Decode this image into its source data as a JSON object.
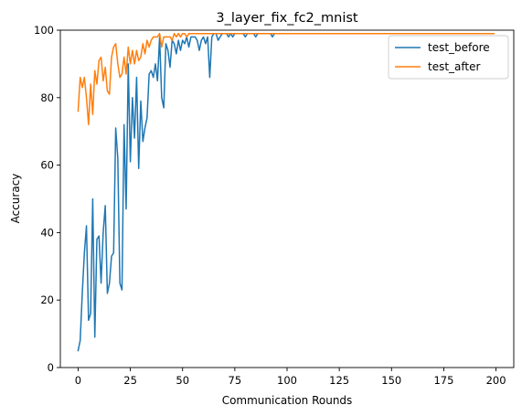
{
  "chart_data": {
    "type": "line",
    "title": "3_layer_fix_fc2_mnist",
    "xlabel": "Communication Rounds",
    "ylabel": "Accuracy",
    "xlim": [
      -8.5,
      208.5
    ],
    "ylim": [
      0,
      100
    ],
    "xticks": [
      0,
      25,
      50,
      75,
      100,
      125,
      150,
      175,
      200
    ],
    "yticks": [
      0,
      20,
      40,
      60,
      80,
      100
    ],
    "grid": false,
    "legend": "top-right",
    "series": [
      {
        "name": "test_before",
        "color": "#1f77b4",
        "values": [
          5,
          8,
          22,
          34,
          42,
          14,
          16,
          50,
          9,
          38,
          39,
          25,
          40,
          48,
          22,
          25,
          33,
          34,
          71,
          62,
          25,
          23,
          72,
          47,
          90,
          61,
          80,
          68,
          86,
          59,
          79,
          67,
          71,
          74,
          87,
          88,
          86,
          90,
          85,
          98,
          80,
          77,
          96,
          94,
          89,
          97,
          96,
          93,
          97,
          94,
          97,
          96,
          98,
          95,
          98,
          98,
          98,
          97,
          94,
          97,
          98,
          96,
          98,
          86,
          98,
          99,
          99,
          97,
          98,
          99,
          99,
          99,
          98,
          99,
          98,
          99,
          99,
          99,
          99,
          99,
          98,
          99,
          99,
          99,
          99,
          98,
          99,
          99,
          99,
          99,
          99,
          99,
          99,
          98,
          99,
          99,
          99,
          99,
          99,
          99,
          99,
          99,
          99,
          99,
          99,
          99,
          99,
          99,
          99,
          99,
          99,
          99,
          99,
          99,
          99,
          99,
          99,
          99,
          99,
          99,
          99,
          99,
          99,
          99,
          99,
          99,
          99,
          99,
          99,
          99,
          99,
          99,
          99,
          99,
          99,
          99,
          99,
          99,
          99,
          99,
          99,
          99,
          99,
          99,
          99,
          99,
          99,
          99,
          99,
          99,
          99,
          99,
          99,
          99,
          99,
          99,
          99,
          99,
          99,
          99,
          99,
          99,
          99,
          99,
          99,
          99,
          99,
          99,
          99,
          99,
          99,
          99,
          99,
          99,
          99,
          99,
          99,
          99,
          99,
          99,
          99,
          99,
          99,
          99,
          99,
          99,
          99,
          99,
          99,
          99,
          99,
          99,
          99,
          99,
          99,
          99,
          99,
          99,
          99,
          99
        ]
      },
      {
        "name": "test_after",
        "color": "#ff7f0e",
        "values": [
          76,
          86,
          83,
          86,
          80,
          72,
          84,
          75,
          88,
          84,
          91,
          92,
          85,
          89,
          82,
          81,
          92,
          95,
          96,
          90,
          86,
          87,
          92,
          87,
          95,
          90,
          94,
          90,
          94,
          91,
          92,
          96,
          93,
          97,
          95,
          97,
          98,
          98,
          98,
          99,
          95,
          98,
          98,
          98,
          98,
          97,
          99,
          98,
          99,
          98,
          99,
          99,
          98,
          99,
          99,
          99,
          99,
          99,
          99,
          99,
          99,
          99,
          99,
          99,
          99,
          99,
          99,
          99,
          99,
          99,
          99,
          99,
          99,
          99,
          99,
          99,
          99,
          99,
          99,
          99,
          99,
          99,
          99,
          99,
          99,
          99,
          99,
          99,
          99,
          99,
          99,
          99,
          99,
          99,
          99,
          99,
          99,
          99,
          99,
          99,
          99,
          99,
          99,
          99,
          99,
          99,
          99,
          99,
          99,
          99,
          99,
          99,
          99,
          99,
          99,
          99,
          99,
          99,
          99,
          99,
          99,
          99,
          99,
          99,
          99,
          99,
          99,
          99,
          99,
          99,
          99,
          99,
          99,
          99,
          99,
          99,
          99,
          99,
          99,
          99,
          99,
          99,
          99,
          99,
          99,
          99,
          99,
          99,
          99,
          99,
          99,
          99,
          99,
          99,
          99,
          99,
          99,
          99,
          99,
          99,
          99,
          99,
          99,
          99,
          99,
          99,
          99,
          99,
          99,
          99,
          99,
          99,
          99,
          99,
          99,
          99,
          99,
          99,
          99,
          99,
          99,
          99,
          99,
          99,
          99,
          99,
          99,
          99,
          99,
          99,
          99,
          99,
          99,
          99,
          99,
          99,
          99,
          99,
          99,
          99
        ]
      }
    ]
  }
}
